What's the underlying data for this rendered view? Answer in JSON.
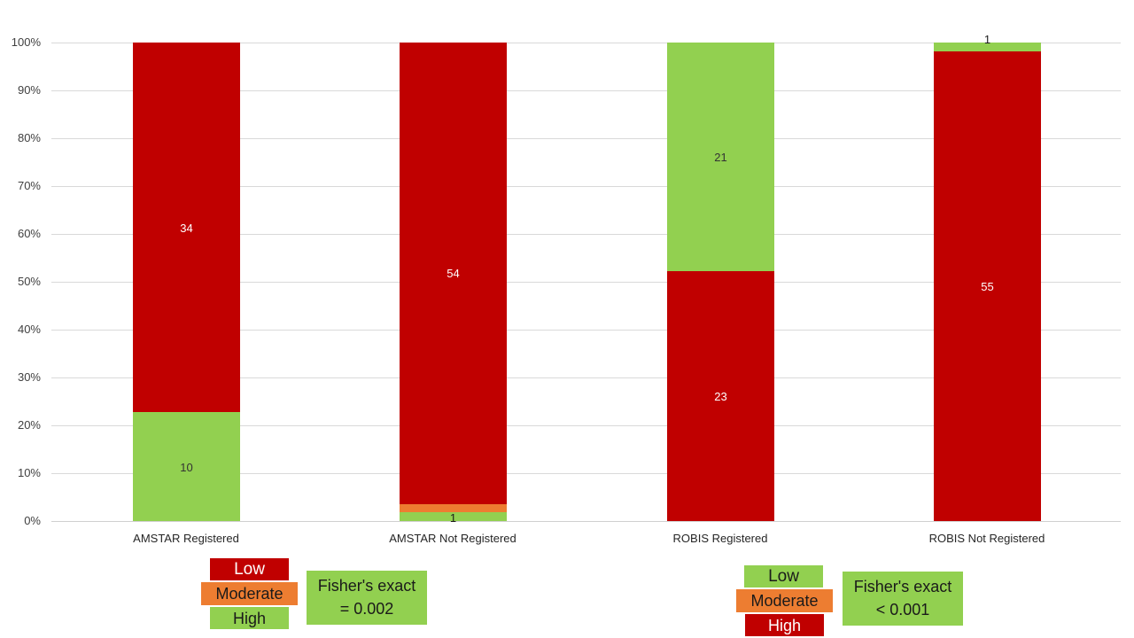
{
  "chart_data": {
    "type": "bar",
    "subtype": "stacked_percent",
    "title": "",
    "xlabel": "",
    "ylabel": "",
    "ylim": [
      0,
      100
    ],
    "yticks": [
      "0%",
      "10%",
      "20%",
      "30%",
      "40%",
      "50%",
      "60%",
      "70%",
      "80%",
      "90%",
      "100%"
    ],
    "grid": true,
    "categories": [
      "AMSTAR Registered",
      "AMSTAR Not Registered",
      "ROBIS Registered",
      "ROBIS Not Registered"
    ],
    "series": [
      {
        "name": "Green",
        "color": "#92d050",
        "values": [
          10,
          1,
          21,
          1
        ]
      },
      {
        "name": "Orange",
        "color": "#ed7d31",
        "values": [
          0,
          1,
          0,
          0
        ]
      },
      {
        "name": "Red",
        "color": "#c00000",
        "values": [
          34,
          54,
          23,
          55
        ]
      }
    ],
    "stack_order_bottom_to_top": {
      "AMSTAR Registered": [
        "Green",
        "Red"
      ],
      "AMSTAR Not Registered": [
        "Green",
        "Orange",
        "Red"
      ],
      "ROBIS Registered": [
        "Red",
        "Green"
      ],
      "ROBIS Not Registered": [
        "Red",
        "Green"
      ]
    }
  },
  "legends": {
    "amstar": {
      "items": [
        {
          "label": "Low",
          "color": "#c00000",
          "text_color": "#ffffff"
        },
        {
          "label": "Moderate",
          "color": "#ed7d31",
          "text_color": "#1a1a1a"
        },
        {
          "label": "High",
          "color": "#92d050",
          "text_color": "#1a1a1a"
        }
      ],
      "fisher_line1": "Fisher's exact",
      "fisher_line2": "= 0.002"
    },
    "robis": {
      "items": [
        {
          "label": "Low",
          "color": "#92d050",
          "text_color": "#1a1a1a"
        },
        {
          "label": "Moderate",
          "color": "#ed7d31",
          "text_color": "#1a1a1a"
        },
        {
          "label": "High",
          "color": "#c00000",
          "text_color": "#ffffff"
        }
      ],
      "fisher_line1": "Fisher's exact",
      "fisher_line2": "< 0.001"
    }
  }
}
